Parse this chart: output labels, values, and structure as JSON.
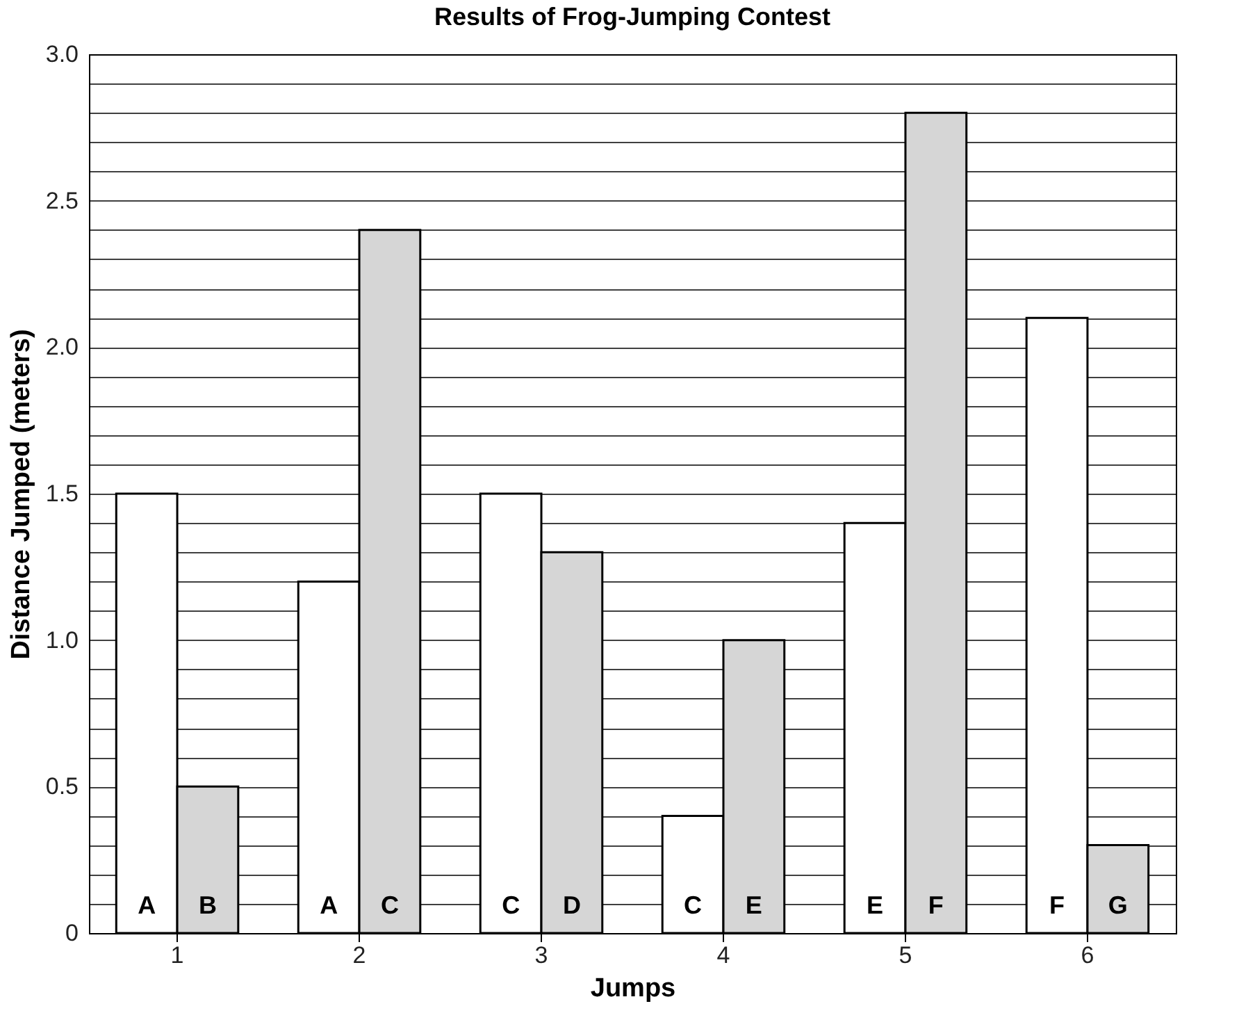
{
  "chart_data": {
    "type": "bar",
    "title": "Results of Frog-Jumping Contest",
    "xlabel": "Jumps",
    "ylabel": "Distance Jumped (meters)",
    "categories": [
      "1",
      "2",
      "3",
      "4",
      "5",
      "6"
    ],
    "series": [
      {
        "color": "#ffffff",
        "values": [
          1.5,
          1.2,
          1.5,
          0.4,
          1.4,
          2.1
        ],
        "value_labels": [
          "A",
          "A",
          "C",
          "C",
          "E",
          "F"
        ]
      },
      {
        "color": "#d6d6d6",
        "values": [
          0.5,
          2.4,
          1.3,
          1.0,
          2.8,
          0.3
        ],
        "value_labels": [
          "B",
          "C",
          "D",
          "E",
          "F",
          "G"
        ]
      }
    ],
    "ylim": [
      0,
      3
    ],
    "yticks": [
      0,
      {
        "value": 0.1,
        "label": null
      },
      {
        "value": 0.2,
        "label": null
      },
      {
        "value": 0.3,
        "label": null
      },
      {
        "value": 0.4,
        "label": null
      },
      0.5,
      {
        "value": 0.6,
        "label": null
      },
      {
        "value": 0.7,
        "label": null
      },
      {
        "value": 0.8,
        "label": null
      },
      {
        "value": 0.9,
        "label": null
      },
      {
        "value": 1,
        "label": "1.0"
      },
      {
        "value": 1.1,
        "label": null
      },
      {
        "value": 1.2,
        "label": null
      },
      {
        "value": 1.3,
        "label": null
      },
      {
        "value": 1.4,
        "label": null
      },
      1.5,
      {
        "value": 1.6,
        "label": null
      },
      {
        "value": 1.7,
        "label": null
      },
      {
        "value": 1.8,
        "label": null
      },
      {
        "value": 1.9,
        "label": null
      },
      {
        "value": 2,
        "label": "2.0"
      },
      {
        "value": 2.1,
        "label": null
      },
      {
        "value": 2.2,
        "label": null
      },
      {
        "value": 2.3,
        "label": null
      },
      {
        "value": 2.4,
        "label": null
      },
      2.5,
      {
        "value": 2.6,
        "label": null
      },
      {
        "value": 2.7,
        "label": null
      },
      {
        "value": 2.8,
        "label": null
      },
      {
        "value": 2.9,
        "label": null
      },
      {
        "value": 3,
        "label": "3.0"
      }
    ],
    "grid": "y",
    "legend": false
  }
}
